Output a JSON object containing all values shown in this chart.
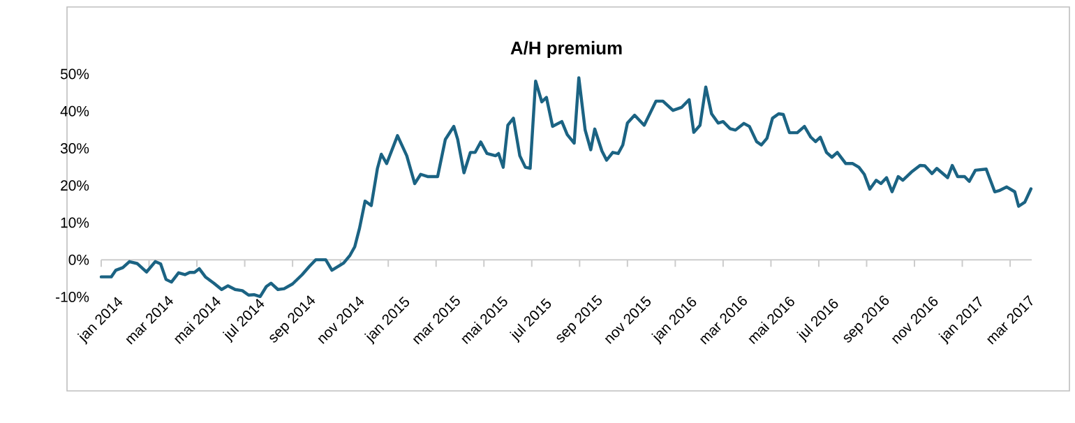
{
  "chart_data": {
    "type": "line",
    "title": "A/H premium",
    "xlim": [
      "2014-01-01",
      "2017-03-29"
    ],
    "xticks": [
      {
        "value": "2014-01",
        "label": "jan 2014"
      },
      {
        "value": "2014-03",
        "label": "mar 2014"
      },
      {
        "value": "2014-05",
        "label": "mai 2014"
      },
      {
        "value": "2014-07",
        "label": "jul 2014"
      },
      {
        "value": "2014-09",
        "label": "sep 2014"
      },
      {
        "value": "2014-11",
        "label": "nov 2014"
      },
      {
        "value": "2015-01",
        "label": "jan 2015"
      },
      {
        "value": "2015-03",
        "label": "mar 2015"
      },
      {
        "value": "2015-05",
        "label": "mai 2015"
      },
      {
        "value": "2015-07",
        "label": "jul 2015"
      },
      {
        "value": "2015-09",
        "label": "sep 2015"
      },
      {
        "value": "2015-11",
        "label": "nov 2015"
      },
      {
        "value": "2016-01",
        "label": "jan 2016"
      },
      {
        "value": "2016-03",
        "label": "mar 2016"
      },
      {
        "value": "2016-05",
        "label": "mai 2016"
      },
      {
        "value": "2016-07",
        "label": "jul 2016"
      },
      {
        "value": "2016-09",
        "label": "sep 2016"
      },
      {
        "value": "2016-11",
        "label": "nov 2016"
      },
      {
        "value": "2017-01",
        "label": "jan 2017"
      },
      {
        "value": "2017-03",
        "label": "mar 2017"
      }
    ],
    "ylim": [
      -10,
      50
    ],
    "yticks": [
      {
        "value": -10,
        "label": "-10%"
      },
      {
        "value": 0,
        "label": "0%"
      },
      {
        "value": 10,
        "label": "10%"
      },
      {
        "value": 20,
        "label": "20%"
      },
      {
        "value": 30,
        "label": "30%"
      },
      {
        "value": 40,
        "label": "40%"
      },
      {
        "value": 50,
        "label": "50%"
      }
    ],
    "grid": false,
    "marker": "none",
    "line_style": "solid",
    "series": [
      {
        "color": "#1b6383",
        "x": [
          "2014-01-01",
          "2014-01-14",
          "2014-01-20",
          "2014-01-29",
          "2014-02-06",
          "2014-02-15",
          "2014-02-26",
          "2014-03-09",
          "2014-03-16",
          "2014-03-23",
          "2014-03-30",
          "2014-04-08",
          "2014-04-16",
          "2014-04-22",
          "2014-04-28",
          "2014-05-04",
          "2014-05-12",
          "2014-05-23",
          "2014-06-02",
          "2014-06-10",
          "2014-06-19",
          "2014-06-28",
          "2014-07-06",
          "2014-07-13",
          "2014-07-21",
          "2014-07-29",
          "2014-08-04",
          "2014-08-13",
          "2014-08-21",
          "2014-09-01",
          "2014-09-13",
          "2014-09-22",
          "2014-09-30",
          "2014-10-13",
          "2014-10-21",
          "2014-11-05",
          "2014-11-13",
          "2014-11-19",
          "2014-11-25",
          "2014-12-02",
          "2014-12-10",
          "2014-12-18",
          "2014-12-23",
          "2014-12-30",
          "2015-01-13",
          "2015-01-25",
          "2015-02-04",
          "2015-02-11",
          "2015-02-19",
          "2015-03-03",
          "2015-03-13",
          "2015-03-24",
          "2015-03-29",
          "2015-04-06",
          "2015-04-14",
          "2015-04-20",
          "2015-04-27",
          "2015-05-05",
          "2015-05-16",
          "2015-05-20",
          "2015-05-26",
          "2015-06-01",
          "2015-06-08",
          "2015-06-16",
          "2015-06-23",
          "2015-06-29",
          "2015-07-06",
          "2015-07-14",
          "2015-07-20",
          "2015-07-28",
          "2015-08-09",
          "2015-08-16",
          "2015-08-25",
          "2015-08-31",
          "2015-09-08",
          "2015-09-15",
          "2015-09-20",
          "2015-09-29",
          "2015-10-05",
          "2015-10-13",
          "2015-10-20",
          "2015-10-26",
          "2015-11-01",
          "2015-11-10",
          "2015-11-22",
          "2015-12-07",
          "2015-12-16",
          "2015-12-29",
          "2016-01-09",
          "2016-01-19",
          "2016-01-25",
          "2016-02-02",
          "2016-02-09",
          "2016-02-16",
          "2016-02-24",
          "2016-03-01",
          "2016-03-10",
          "2016-03-17",
          "2016-03-28",
          "2016-04-04",
          "2016-04-13",
          "2016-04-19",
          "2016-04-26",
          "2016-05-03",
          "2016-05-11",
          "2016-05-17",
          "2016-05-25",
          "2016-06-04",
          "2016-06-13",
          "2016-06-21",
          "2016-06-27",
          "2016-07-03",
          "2016-07-11",
          "2016-07-18",
          "2016-07-25",
          "2016-08-05",
          "2016-08-14",
          "2016-08-22",
          "2016-08-29",
          "2016-09-05",
          "2016-09-13",
          "2016-09-19",
          "2016-09-26",
          "2016-10-03",
          "2016-10-11",
          "2016-10-17",
          "2016-10-28",
          "2016-11-08",
          "2016-11-14",
          "2016-11-23",
          "2016-11-29",
          "2016-12-13",
          "2016-12-19",
          "2016-12-26",
          "2017-01-04",
          "2017-01-10",
          "2017-01-18",
          "2017-02-01",
          "2017-02-11",
          "2017-02-16",
          "2017-02-25",
          "2017-03-07",
          "2017-03-12",
          "2017-03-20",
          "2017-03-28"
        ],
        "values": [
          -4.6,
          -4.6,
          -2.8,
          -2.1,
          -0.5,
          -1,
          -3.3,
          -0.5,
          -1.1,
          -5.3,
          -6,
          -3.5,
          -4,
          -3.4,
          -3.4,
          -2.4,
          -4.6,
          -6.3,
          -8,
          -7,
          -8,
          -8.3,
          -9.5,
          -9.4,
          -9.9,
          -7.2,
          -6.3,
          -8,
          -7.8,
          -6.5,
          -4,
          -1.8,
          0,
          0,
          -2.8,
          -0.9,
          1.2,
          3.5,
          8.5,
          15.8,
          14.6,
          24.6,
          28.4,
          25.9,
          33.4,
          28,
          20.5,
          23,
          22.4,
          22.4,
          32.4,
          35.9,
          32.4,
          23.4,
          28.9,
          28.9,
          31.7,
          28.6,
          28,
          28.6,
          24.9,
          36.2,
          38.1,
          28,
          24.9,
          24.6,
          48.1,
          42.5,
          43.7,
          35.9,
          37.2,
          33.7,
          31.4,
          49,
          34.9,
          29.6,
          35.2,
          29.3,
          26.8,
          28.9,
          28.6,
          30.9,
          36.8,
          38.9,
          36.2,
          42.7,
          42.7,
          40.2,
          41,
          43.1,
          34.3,
          36.2,
          46.5,
          39.3,
          36.8,
          37.2,
          35.3,
          34.9,
          36.7,
          35.9,
          31.8,
          30.9,
          32.7,
          38.1,
          39.3,
          39.1,
          34.2,
          34.2,
          35.9,
          33,
          31.8,
          33,
          28.9,
          27.6,
          28.9,
          25.9,
          25.9,
          24.9,
          23,
          19,
          21.4,
          20.5,
          22.1,
          18.3,
          22.4,
          21.4,
          23.6,
          25.4,
          25.3,
          23.2,
          24.6,
          22.1,
          25.4,
          22.4,
          22.4,
          21.1,
          24.1,
          24.4,
          18.3,
          18.6,
          19.6,
          18.3,
          14.4,
          15.5,
          19.1
        ]
      }
    ]
  }
}
